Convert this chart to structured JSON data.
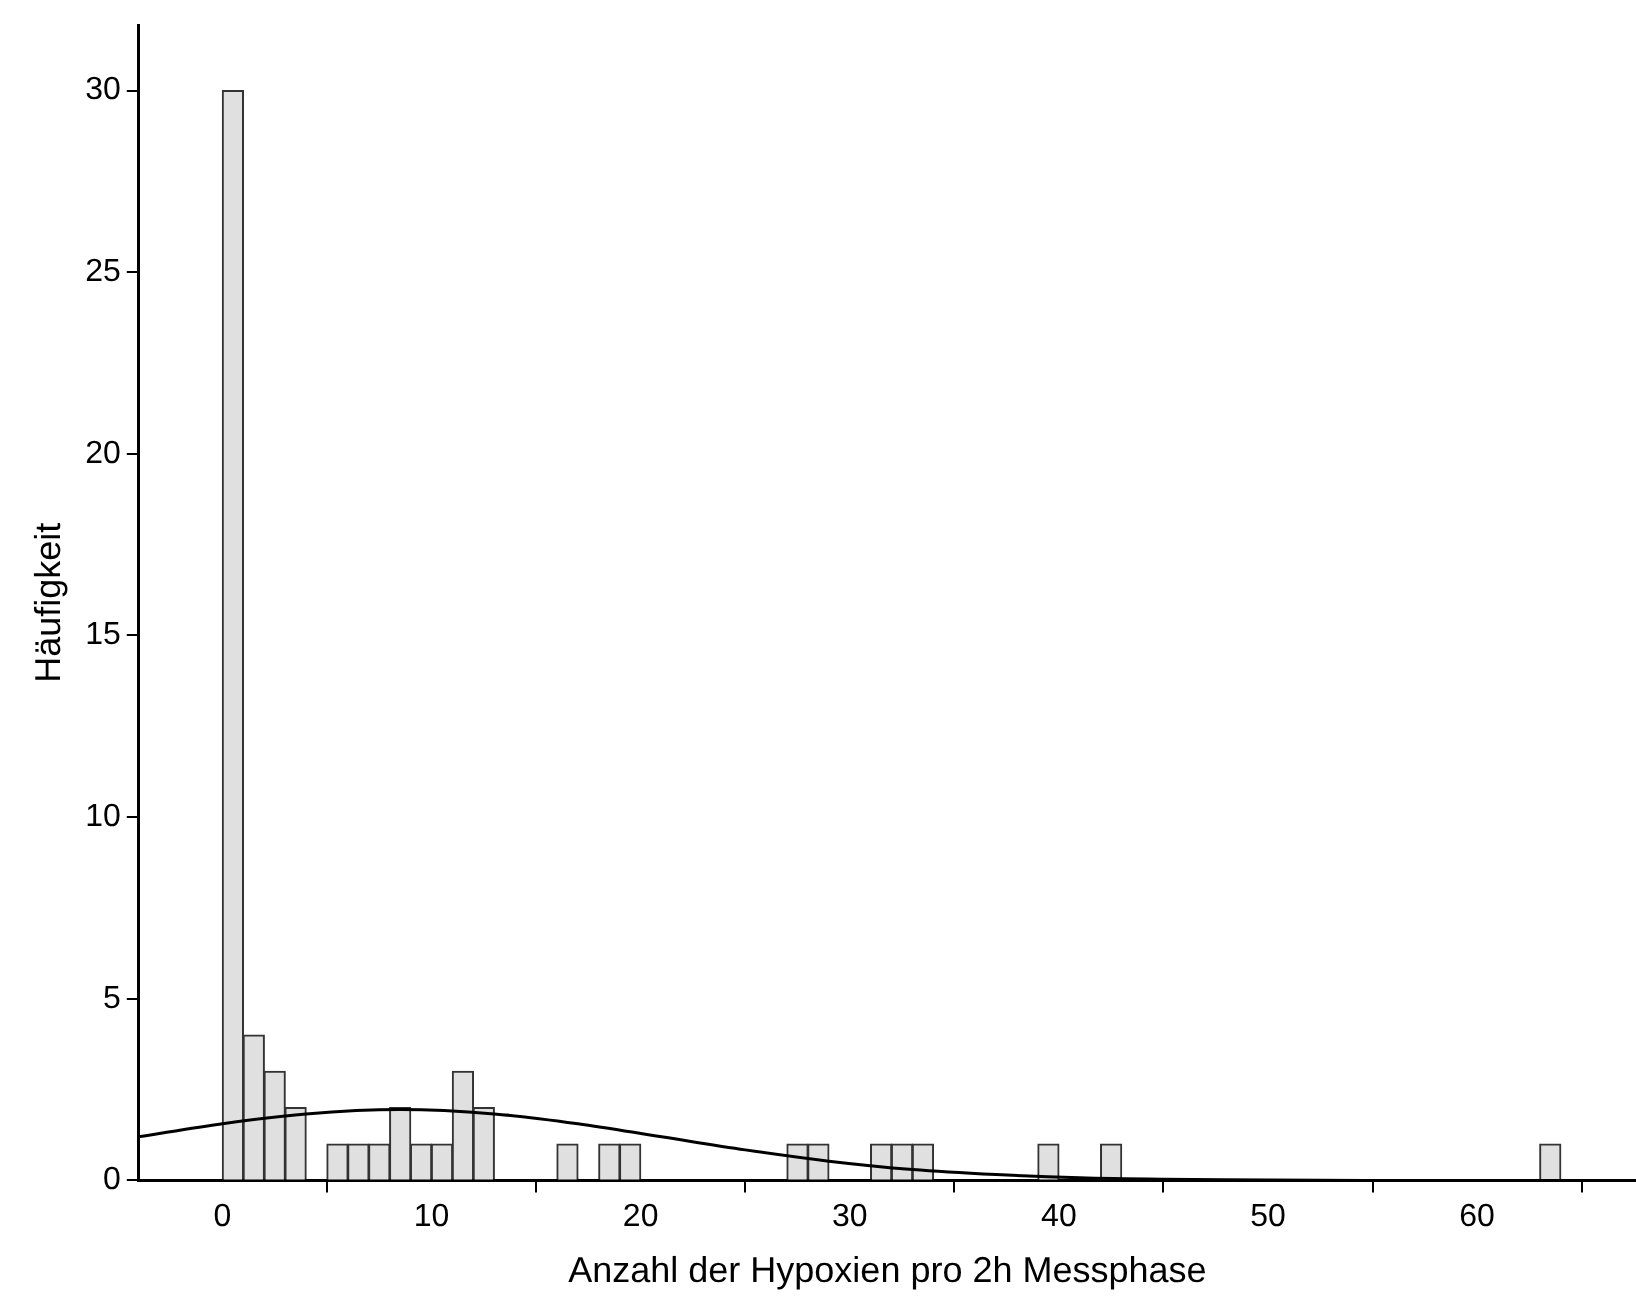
{
  "chart_data": {
    "type": "histogram",
    "xlabel": "Anzahl der Hypoxien pro 2h Messphase",
    "ylabel": "Häufigkeit",
    "bins": [
      0,
      1,
      2,
      3,
      4,
      5,
      6,
      7,
      8,
      9,
      10,
      11,
      12,
      13,
      14,
      15,
      16,
      17,
      18,
      19,
      20,
      21,
      22,
      23,
      24,
      25,
      26,
      27,
      28,
      29,
      30,
      31,
      32,
      33,
      34,
      35,
      36,
      37,
      38,
      39,
      40,
      41,
      42,
      43,
      44,
      45,
      46,
      47,
      48,
      49,
      50,
      51,
      52,
      53,
      54,
      55,
      56,
      57,
      58,
      59,
      60,
      61,
      62,
      63,
      64
    ],
    "values": [
      30,
      4,
      3,
      2,
      0,
      1,
      1,
      1,
      2,
      1,
      1,
      3,
      2,
      0,
      0,
      0,
      1,
      0,
      1,
      1,
      0,
      0,
      0,
      0,
      0,
      0,
      0,
      1,
      1,
      0,
      0,
      1,
      1,
      1,
      0,
      0,
      0,
      0,
      0,
      1,
      0,
      0,
      1,
      0,
      0,
      0,
      0,
      0,
      0,
      0,
      0,
      0,
      0,
      0,
      0,
      0,
      0,
      0,
      0,
      0,
      0,
      0,
      0,
      1
    ],
    "color": "#e0e0e0",
    "series": [
      {
        "type": "line",
        "color": "#000000",
        "x": [
          -4,
          0,
          4,
          8.5,
          13,
          17,
          21,
          25,
          29,
          33,
          37,
          41,
          45,
          50,
          55,
          67.6
        ],
        "values": [
          1.2,
          1.56,
          1.83,
          1.95,
          1.83,
          1.56,
          1.2,
          0.84,
          0.53,
          0.3,
          0.16,
          0.07,
          0.03,
          0.01,
          0,
          0
        ]
      }
    ],
    "marker": "none",
    "grid": false,
    "legend": false,
    "xlim": [
      -4,
      67.6
    ],
    "xticks": [
      0,
      10,
      20,
      30,
      40,
      50,
      60
    ],
    "ylim": [
      0,
      31.8
    ],
    "yticks": [
      0,
      5,
      10,
      15,
      20,
      25,
      30
    ]
  }
}
